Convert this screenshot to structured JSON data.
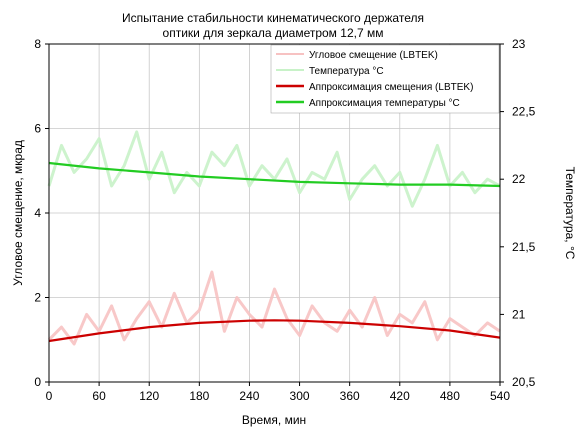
{
  "chart_data": {
    "type": "line",
    "title": [
      "Испытание стабильности кинематического держателя",
      "оптики для зеркала диаметром 12,7 мм"
    ],
    "xlabel": "Время, мин",
    "ylabel_left": "Угловое смещение, мкрад",
    "ylabel_right": "Температура, °C",
    "x_ticks": [
      "0",
      "60",
      "120",
      "180",
      "240",
      "300",
      "360",
      "420",
      "480",
      "540"
    ],
    "y_left_ticks": [
      "0",
      "2",
      "4",
      "6",
      "8"
    ],
    "y_right_ticks": [
      "20,5",
      "21",
      "21,5",
      "22",
      "22,5",
      "23"
    ],
    "xlim": [
      0,
      540
    ],
    "ylim_left": [
      0,
      8
    ],
    "ylim_right": [
      20.5,
      23
    ],
    "grid": true,
    "legend_position": "top-right",
    "legend": [
      {
        "label": "Угловое смещение (LBTEK)",
        "color": "#f7c2c2"
      },
      {
        "label": "Температура °C",
        "color": "#c8f2c8"
      },
      {
        "label": "Аппроксимация смещения (LBTEK)",
        "color": "#cc0000"
      },
      {
        "label": "Аппроксимация температуры °C",
        "color": "#22cc22"
      }
    ],
    "series": [
      {
        "name": "Аппроксимация смещения (LBTEK)",
        "axis": "left",
        "color": "#cc0000",
        "x": [
          0,
          60,
          120,
          180,
          240,
          270,
          300,
          360,
          420,
          480,
          540
        ],
        "y": [
          0.97,
          1.15,
          1.3,
          1.4,
          1.45,
          1.46,
          1.45,
          1.4,
          1.32,
          1.22,
          1.05
        ]
      },
      {
        "name": "Аппроксимация температуры °C",
        "axis": "right",
        "color": "#22cc22",
        "x": [
          0,
          60,
          120,
          180,
          240,
          300,
          360,
          420,
          480,
          540
        ],
        "y": [
          22.12,
          22.08,
          22.05,
          22.02,
          22.0,
          21.98,
          21.97,
          21.96,
          21.96,
          21.95
        ]
      },
      {
        "name": "Угловое смещение (LBTEK)",
        "axis": "left",
        "color": "#f7c2c2",
        "x": [
          0,
          15,
          30,
          45,
          60,
          75,
          90,
          105,
          120,
          135,
          150,
          165,
          180,
          195,
          210,
          225,
          240,
          255,
          270,
          285,
          300,
          315,
          330,
          345,
          360,
          375,
          390,
          405,
          420,
          435,
          450,
          465,
          480,
          495,
          510,
          525,
          540
        ],
        "y": [
          1.0,
          1.3,
          0.9,
          1.6,
          1.2,
          1.8,
          1.0,
          1.5,
          1.9,
          1.3,
          2.1,
          1.4,
          1.7,
          2.6,
          1.2,
          2.0,
          1.6,
          1.3,
          2.2,
          1.5,
          1.1,
          1.8,
          1.4,
          1.2,
          1.7,
          1.3,
          2.0,
          1.1,
          1.6,
          1.4,
          1.9,
          1.0,
          1.5,
          1.3,
          1.1,
          1.4,
          1.2
        ]
      },
      {
        "name": "Температура °C",
        "axis": "right",
        "color": "#c8f2c8",
        "x": [
          0,
          15,
          30,
          45,
          60,
          75,
          90,
          105,
          120,
          135,
          150,
          165,
          180,
          195,
          210,
          225,
          240,
          255,
          270,
          285,
          300,
          315,
          330,
          345,
          360,
          375,
          390,
          405,
          420,
          435,
          450,
          465,
          480,
          495,
          510,
          525,
          540
        ],
        "y": [
          21.95,
          22.25,
          22.05,
          22.15,
          22.3,
          21.95,
          22.1,
          22.35,
          22.0,
          22.2,
          21.9,
          22.05,
          21.95,
          22.2,
          22.1,
          22.25,
          21.95,
          22.1,
          22.0,
          22.15,
          21.9,
          22.05,
          22.0,
          22.2,
          21.85,
          22.0,
          22.1,
          21.95,
          22.05,
          21.8,
          22.0,
          22.25,
          21.95,
          22.05,
          21.9,
          22.0,
          21.95
        ]
      }
    ]
  }
}
